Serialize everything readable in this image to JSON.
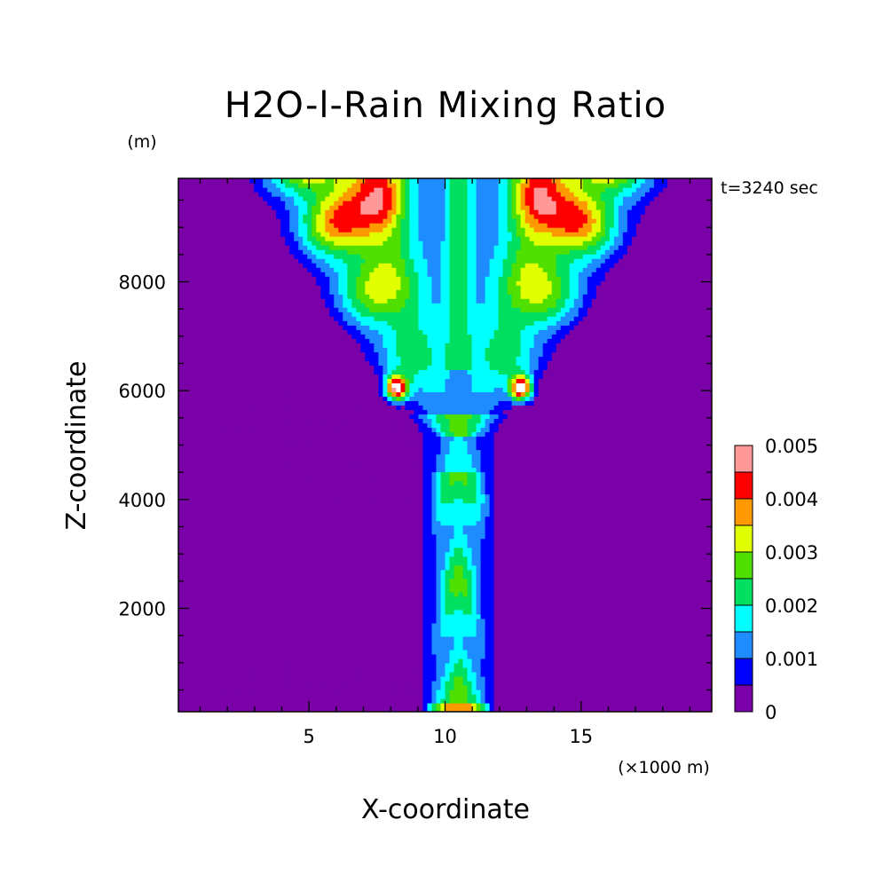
{
  "chart_data": {
    "type": "heatmap",
    "title": "H2O-l-Rain Mixing Ratio",
    "xlabel": "X-coordinate",
    "ylabel": "Z-coordinate",
    "x_unit": "(×1000 m)",
    "y_unit": "(m)",
    "time_label": "t=3240 sec",
    "xlim": [
      0.2,
      19.8
    ],
    "ylim": [
      100,
      9900
    ],
    "x_ticks": [
      5,
      10,
      15
    ],
    "y_ticks": [
      2000,
      4000,
      6000,
      8000
    ],
    "colorbar": {
      "levels": [
        0,
        0.0005,
        0.001,
        0.0015,
        0.002,
        0.0025,
        0.003,
        0.0035,
        0.004,
        0.0045,
        0.005
      ],
      "labels": [
        "0",
        "0.001",
        "0.002",
        "0.003",
        "0.004",
        "0.005"
      ],
      "colors": [
        "#7a00a8",
        "#0000ff",
        "#1e8cff",
        "#00ffff",
        "#00e060",
        "#50e000",
        "#e0ff00",
        "#ff9900",
        "#ff0000",
        "#ff9999",
        "#ffffff"
      ]
    },
    "grid": false
  }
}
